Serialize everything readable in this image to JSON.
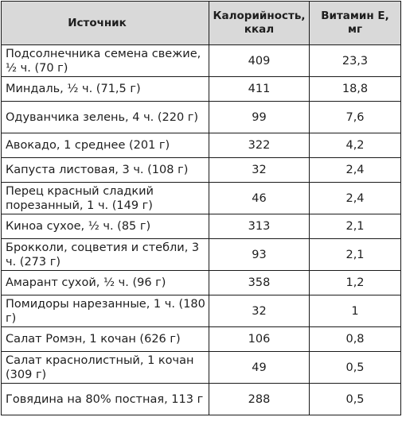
{
  "table": {
    "headers": [
      "Источник",
      "Калорийность, ккал",
      "Витамин Е, мг"
    ],
    "rows": [
      {
        "source": "Подсолнечника семена свежие, ½ ч. (70 г)",
        "kcal": "409",
        "vitamin_e": "23,3"
      },
      {
        "source": "Миндаль, ½ ч. (71,5 г)",
        "kcal": "411",
        "vitamin_e": "18,8"
      },
      {
        "source": "Одуванчика зелень, 4 ч. (220 г)",
        "kcal": "99",
        "vitamin_e": "7,6"
      },
      {
        "source": "Авокадо, 1 среднее (201 г)",
        "kcal": "322",
        "vitamin_e": "4,2"
      },
      {
        "source": "Капуста листовая, 3 ч. (108 г)",
        "kcal": "32",
        "vitamin_e": "2,4"
      },
      {
        "source": "Перец красный сладкий порезанный, 1 ч. (149 г)",
        "kcal": "46",
        "vitamin_e": "2,4"
      },
      {
        "source": "Киноа сухое, ½ ч. (85 г)",
        "kcal": "313",
        "vitamin_e": "2,1"
      },
      {
        "source": "Брокколи, соцветия и стебли, 3 ч. (273 г)",
        "kcal": "93",
        "vitamin_e": "2,1"
      },
      {
        "source": "Амарант сухой, ½ ч. (96 г)",
        "kcal": "358",
        "vitamin_e": "1,2"
      },
      {
        "source": "Помидоры нарезанные, 1 ч. (180 г)",
        "kcal": "32",
        "vitamin_e": "1"
      },
      {
        "source": "Салат Ромэн, 1 кочан (626 г)",
        "kcal": "106",
        "vitamin_e": "0,8"
      },
      {
        "source": "Салат краснолистный, 1 кочан (309 г)",
        "kcal": "49",
        "vitamin_e": "0,5"
      },
      {
        "source": "Говядина на 80% постная, 113 г",
        "kcal": "288",
        "vitamin_e": "0,5"
      }
    ]
  }
}
